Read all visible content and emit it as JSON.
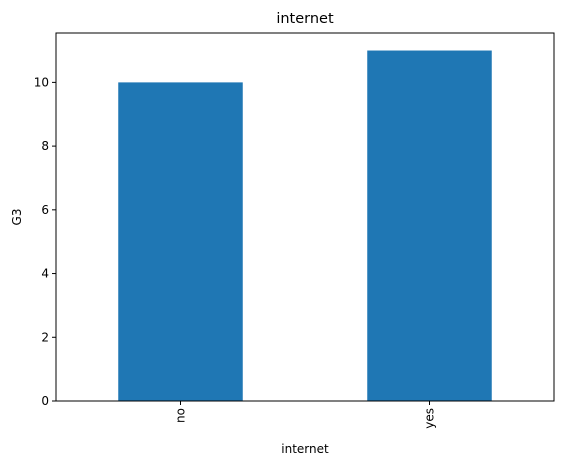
{
  "chart_data": {
    "type": "bar",
    "title": "internet",
    "xlabel": "internet",
    "ylabel": "G3",
    "categories": [
      "no",
      "yes"
    ],
    "values": [
      10,
      11
    ],
    "ylim": [
      0,
      11.55
    ],
    "yticks": [
      0,
      2,
      4,
      6,
      8,
      10
    ],
    "grid": false,
    "legend": "none",
    "bar_color": "#1f77b4",
    "x_tick_rotation": "vertical"
  }
}
